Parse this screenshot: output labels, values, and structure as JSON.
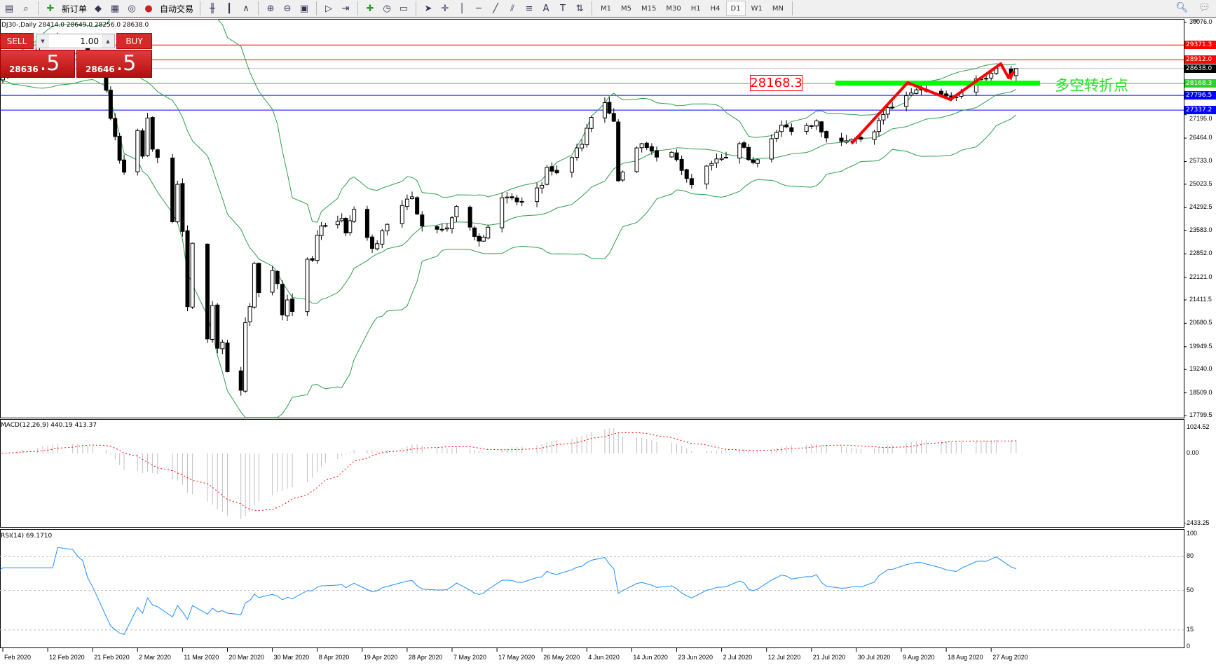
{
  "toolbar": {
    "icons": [
      "window-icon",
      "zoom-window-icon",
      "new-order-icon",
      "gold-icon",
      "history-icon",
      "signal-icon",
      "auto-trading-icon",
      "bar-chart-icon",
      "candle-chart-icon",
      "line-chart-icon",
      "zoom-in-icon",
      "zoom-out-icon",
      "tile-icon",
      "autoscroll-icon",
      "chart-shift-icon",
      "add-indicator-icon",
      "clock-icon",
      "template-icon",
      "cursor-icon",
      "crosshair-icon",
      "vertical-line-icon",
      "horizontal-line-icon",
      "trendline-icon",
      "equidistant-channel-icon",
      "fibonacci-icon",
      "text-icon",
      "text-label-icon",
      "arrows-icon"
    ],
    "new_order": "新订单",
    "auto_trading": "自动交易",
    "timeframes": [
      "M1",
      "M5",
      "M15",
      "M30",
      "H1",
      "H4",
      "D1",
      "W1",
      "MN"
    ],
    "active_timeframe": "D1"
  },
  "chart": {
    "header": "DJ30-,Daily  28414.0 28649.0 28256.0 28638.0",
    "trade": {
      "sell": "SELL",
      "buy": "BUY",
      "lot": "1.00",
      "sell_small": "28636",
      "sell_big": ".5",
      "buy_small": "28646",
      "buy_big": ".5"
    },
    "annotation_value": "28168.3",
    "annotation_text": "多空转折点",
    "levels": [
      {
        "value": 29371.3,
        "label": "29371.3",
        "color": "#ff0000"
      },
      {
        "value": 28912.0,
        "label": "28912.0",
        "color": "#ff0000"
      },
      {
        "value": 28638.0,
        "label": "28638.0",
        "color": "#000000",
        "line": "#c0c0c0"
      },
      {
        "value": 28168.3,
        "label": "28168.3",
        "color": "#32cd32"
      },
      {
        "value": 27796.5,
        "label": "27796.5",
        "color": "#0000ff"
      },
      {
        "value": 27337.2,
        "label": "27337.2",
        "color": "#0000ff"
      }
    ],
    "macd_label": "MACD(12,26,9) 440.19 413.37",
    "rsi_label": "RSI(14) 69.1710"
  },
  "chart_data": {
    "type": "candlestick",
    "symbol": "DJ30-",
    "timeframe": "Daily",
    "last": {
      "open": 28414.0,
      "high": 28649.0,
      "low": 28256.0,
      "close": 28638.0
    },
    "price_ticks": [
      "30076.0",
      "27195.0",
      "26464.0",
      "25733.0",
      "25023.5",
      "24292.5",
      "23583.0",
      "22852.0",
      "22121.0",
      "21411.5",
      "20680.5",
      "19949.5",
      "19240.0",
      "18509.0",
      "17799.5"
    ],
    "ylim": [
      17799.5,
      30076.0
    ],
    "macd": {
      "params": "12,26,9",
      "main": 440.19,
      "signal": 413.37,
      "ylim": [
        -2433.25,
        1024.52
      ],
      "ticks": [
        "1024.52",
        "0.00",
        "-2433.25"
      ]
    },
    "rsi": {
      "period": 14,
      "value": 69.171,
      "ticks": [
        "100",
        "80",
        "50",
        "15",
        "0"
      ],
      "levels": [
        80,
        50,
        15
      ]
    },
    "date_labels": [
      "Feb 2020",
      "12 Feb 2020",
      "21 Feb 2020",
      "2 Mar 2020",
      "11 Mar 2020",
      "20 Mar 2020",
      "30 Mar 2020",
      "8 Apr 2020",
      "19 Apr 2020",
      "28 Apr 2020",
      "7 May 2020",
      "17 May 2020",
      "26 May 2020",
      "4 Jun 2020",
      "14 Jun 2020",
      "23 Jun 2020",
      "2 Jul 2020",
      "12 Jul 2020",
      "21 Jul 2020",
      "30 Jul 2020",
      "9 Aug 2020",
      "18 Aug 2020",
      "27 Aug 2020"
    ],
    "approx_closes": [
      [
        "2020-01-31",
        28300
      ],
      [
        "2020-02-03",
        28400
      ],
      [
        "2020-02-07",
        29100
      ],
      [
        "2020-02-12",
        29550
      ],
      [
        "2020-02-19",
        29350
      ],
      [
        "2020-02-21",
        28990
      ],
      [
        "2020-02-24",
        27960
      ],
      [
        "2020-02-25",
        27080
      ],
      [
        "2020-02-27",
        25770
      ],
      [
        "2020-02-28",
        25400
      ],
      [
        "2020-03-02",
        26700
      ],
      [
        "2020-03-03",
        25900
      ],
      [
        "2020-03-04",
        27090
      ],
      [
        "2020-03-05",
        26120
      ],
      [
        "2020-03-06",
        25860
      ],
      [
        "2020-03-09",
        23850
      ],
      [
        "2020-03-10",
        25020
      ],
      [
        "2020-03-11",
        23550
      ],
      [
        "2020-03-12",
        21200
      ],
      [
        "2020-03-13",
        23180
      ],
      [
        "2020-03-16",
        20190
      ],
      [
        "2020-03-17",
        21240
      ],
      [
        "2020-03-18",
        19900
      ],
      [
        "2020-03-19",
        20090
      ],
      [
        "2020-03-20",
        19170
      ],
      [
        "2020-03-23",
        18590
      ],
      [
        "2020-03-24",
        20700
      ],
      [
        "2020-03-25",
        21200
      ],
      [
        "2020-03-26",
        22550
      ],
      [
        "2020-03-27",
        21640
      ],
      [
        "2020-03-30",
        22330
      ],
      [
        "2020-03-31",
        21920
      ],
      [
        "2020-04-01",
        20940
      ],
      [
        "2020-04-02",
        21410
      ],
      [
        "2020-04-03",
        21050
      ],
      [
        "2020-04-06",
        22680
      ],
      [
        "2020-04-07",
        22650
      ],
      [
        "2020-04-08",
        23430
      ],
      [
        "2020-04-09",
        23720
      ],
      [
        "2020-04-14",
        23950
      ],
      [
        "2020-04-15",
        23500
      ],
      [
        "2020-04-17",
        24240
      ],
      [
        "2020-04-21",
        23020
      ],
      [
        "2020-04-24",
        23770
      ],
      [
        "2020-04-29",
        24630
      ],
      [
        "2020-05-01",
        23720
      ],
      [
        "2020-05-06",
        23660
      ],
      [
        "2020-05-08",
        24330
      ],
      [
        "2020-05-13",
        23250
      ],
      [
        "2020-05-15",
        23680
      ],
      [
        "2020-05-18",
        24600
      ],
      [
        "2020-05-22",
        24460
      ],
      [
        "2020-05-26",
        24990
      ],
      [
        "2020-05-27",
        25550
      ],
      [
        "2020-05-29",
        25380
      ],
      [
        "2020-06-03",
        26270
      ],
      [
        "2020-06-05",
        27110
      ],
      [
        "2020-06-08",
        27570
      ],
      [
        "2020-06-10",
        26990
      ],
      [
        "2020-06-11",
        25130
      ],
      [
        "2020-06-16",
        26290
      ],
      [
        "2020-06-19",
        25870
      ],
      [
        "2020-06-22",
        26020
      ],
      [
        "2020-06-26",
        25010
      ],
      [
        "2020-06-29",
        25590
      ],
      [
        "2020-07-02",
        25830
      ],
      [
        "2020-07-06",
        26290
      ],
      [
        "2020-07-09",
        25700
      ],
      [
        "2020-07-14",
        26640
      ],
      [
        "2020-07-15",
        26870
      ],
      [
        "2020-07-17",
        26670
      ],
      [
        "2020-07-22",
        27000
      ],
      [
        "2020-07-24",
        26470
      ],
      [
        "2020-07-28",
        26380
      ],
      [
        "2020-07-31",
        26430
      ],
      [
        "2020-08-03",
        26660
      ],
      [
        "2020-08-05",
        27200
      ],
      [
        "2020-08-07",
        27430
      ],
      [
        "2020-08-10",
        27790
      ],
      [
        "2020-08-12",
        27970
      ],
      [
        "2020-08-14",
        27930
      ],
      [
        "2020-08-18",
        27780
      ],
      [
        "2020-08-20",
        27740
      ],
      [
        "2020-08-24",
        28310
      ],
      [
        "2020-08-26",
        28330
      ],
      [
        "2020-08-27",
        28490
      ],
      [
        "2020-08-28",
        28650
      ],
      [
        "2020-08-31",
        28430
      ],
      [
        "2020-09-01",
        28638
      ]
    ],
    "bollinger_color": "#2e9e4e",
    "macd_signal_color": "#ff0000",
    "rsi_color": "#1e90ff"
  }
}
